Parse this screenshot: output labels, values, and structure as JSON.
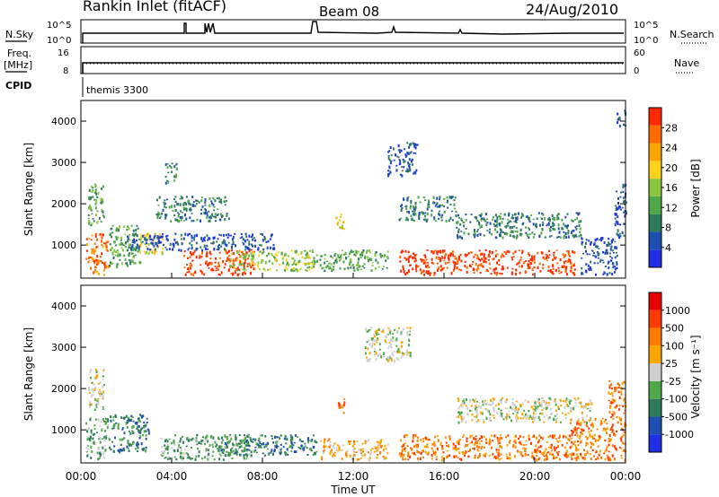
{
  "header": {
    "title": "Rankin Inlet (fitACF)",
    "beam": "Beam 08",
    "date": "24/Aug/2010"
  },
  "strips": {
    "nsky_label": "N.Sky",
    "nsky_ticks": [
      "10^5",
      "10^0"
    ],
    "nsearch_label": "N.Search",
    "nsearch_ticks": [
      "10^5",
      "10^0"
    ],
    "freq_label": "Freq.",
    "freq_unit": "[MHz]",
    "freq_ticks": [
      "16",
      "8"
    ],
    "nave_label": "Nave",
    "nave_ticks": [
      "60",
      "0"
    ],
    "cpid_label": "CPID",
    "cpid_value": "themis 3300"
  },
  "chart_data": [
    {
      "type": "heatmap",
      "name": "power",
      "ylabel": "Slant Range [km]",
      "yticks": [
        1000,
        2000,
        3000,
        4000
      ],
      "ylim": [
        200,
        4500
      ],
      "xlim": [
        0,
        24
      ],
      "colorbar_label": "Power [dB]",
      "colorbar_ticks": [
        "28",
        "24",
        "20",
        "16",
        "12",
        "8",
        "4"
      ],
      "colors": [
        "#1f2fe6",
        "#1e4fb0",
        "#2e7a5a",
        "#4ea84a",
        "#8cc63f",
        "#ffd21a",
        "#ffa500",
        "#ff6a00",
        "#ff2a00"
      ],
      "regions": [
        {
          "t0": 0.2,
          "t1": 1.2,
          "r0": 300,
          "r1": 1300,
          "level": 7
        },
        {
          "t0": 0.3,
          "t1": 1.0,
          "r0": 1500,
          "r1": 2500,
          "level": 3
        },
        {
          "t0": 1.2,
          "t1": 2.6,
          "r0": 500,
          "r1": 1500,
          "level": 3
        },
        {
          "t0": 2.5,
          "t1": 3.6,
          "r0": 800,
          "r1": 1300,
          "level": 5
        },
        {
          "t0": 3.7,
          "t1": 4.2,
          "r0": 2500,
          "r1": 3000,
          "level": 2
        },
        {
          "t0": 3.3,
          "t1": 6.5,
          "r0": 1600,
          "r1": 2200,
          "level": 2
        },
        {
          "t0": 4.5,
          "t1": 7.6,
          "r0": 300,
          "r1": 900,
          "level": 8
        },
        {
          "t0": 6.5,
          "t1": 10.4,
          "r0": 400,
          "r1": 900,
          "level": 4
        },
        {
          "t0": 2.0,
          "t1": 8.5,
          "r0": 900,
          "r1": 1300,
          "level": 1
        },
        {
          "t0": 10.5,
          "t1": 13.5,
          "r0": 400,
          "r1": 900,
          "level": 3
        },
        {
          "t0": 11.2,
          "t1": 11.6,
          "r0": 1400,
          "r1": 1800,
          "level": 5
        },
        {
          "t0": 13.5,
          "t1": 14.8,
          "r0": 2700,
          "r1": 3500,
          "level": 1
        },
        {
          "t0": 14.0,
          "t1": 16.5,
          "r0": 1600,
          "r1": 2200,
          "level": 2
        },
        {
          "t0": 14.0,
          "t1": 21.8,
          "r0": 300,
          "r1": 900,
          "level": 8
        },
        {
          "t0": 16.5,
          "t1": 22.0,
          "r0": 1200,
          "r1": 1800,
          "level": 2
        },
        {
          "t0": 22.0,
          "t1": 23.6,
          "r0": 300,
          "r1": 1200,
          "level": 1
        },
        {
          "t0": 23.5,
          "t1": 24.0,
          "r0": 1200,
          "r1": 2500,
          "level": 1
        },
        {
          "t0": 23.6,
          "t1": 24.0,
          "r0": 3900,
          "r1": 4300,
          "level": 1
        }
      ]
    },
    {
      "type": "heatmap",
      "name": "velocity",
      "ylabel": "Slant Range [km]",
      "yticks": [
        1000,
        2000,
        3000,
        4000
      ],
      "ylim": [
        200,
        4500
      ],
      "xlim": [
        0,
        24
      ],
      "colorbar_label": "Velocity [m s⁻¹]",
      "colorbar_ticks": [
        "1000",
        "500",
        "100",
        "25",
        "-25",
        "-100",
        "-500",
        "-1000"
      ],
      "colors": [
        "#1f2fe6",
        "#1e4fb0",
        "#2e7a5a",
        "#4ea84a",
        "#cfcfcf",
        "#ffa500",
        "#ff7a00",
        "#ff3a00",
        "#e60000"
      ],
      "regions": [
        {
          "t0": 0.2,
          "t1": 1.2,
          "r0": 300,
          "r1": 1300,
          "level": 3
        },
        {
          "t0": 0.3,
          "t1": 1.0,
          "r0": 1500,
          "r1": 2500,
          "level": 4
        },
        {
          "t0": 1.2,
          "t1": 3.0,
          "r0": 500,
          "r1": 1400,
          "level": 2
        },
        {
          "t0": 3.5,
          "t1": 7.5,
          "r0": 300,
          "r1": 900,
          "level": 3
        },
        {
          "t0": 6.0,
          "t1": 10.4,
          "r0": 400,
          "r1": 900,
          "level": 2
        },
        {
          "t0": 10.5,
          "t1": 13.5,
          "r0": 300,
          "r1": 800,
          "level": 5
        },
        {
          "t0": 11.2,
          "t1": 11.6,
          "r0": 1400,
          "r1": 1800,
          "level": 6
        },
        {
          "t0": 12.5,
          "t1": 14.5,
          "r0": 2700,
          "r1": 3500,
          "level": 4
        },
        {
          "t0": 14.0,
          "t1": 21.5,
          "r0": 300,
          "r1": 900,
          "level": 6
        },
        {
          "t0": 16.5,
          "t1": 22.5,
          "r0": 1200,
          "r1": 1800,
          "level": 4
        },
        {
          "t0": 21.5,
          "t1": 24.0,
          "r0": 300,
          "r1": 1300,
          "level": 6
        },
        {
          "t0": 23.2,
          "t1": 24.0,
          "r0": 1300,
          "r1": 2200,
          "level": 6
        }
      ]
    }
  ],
  "x_axis": {
    "ticks": [
      "00:00",
      "04:00",
      "08:00",
      "12:00",
      "16:00",
      "20:00",
      "00:00"
    ],
    "label": "Time UT"
  }
}
